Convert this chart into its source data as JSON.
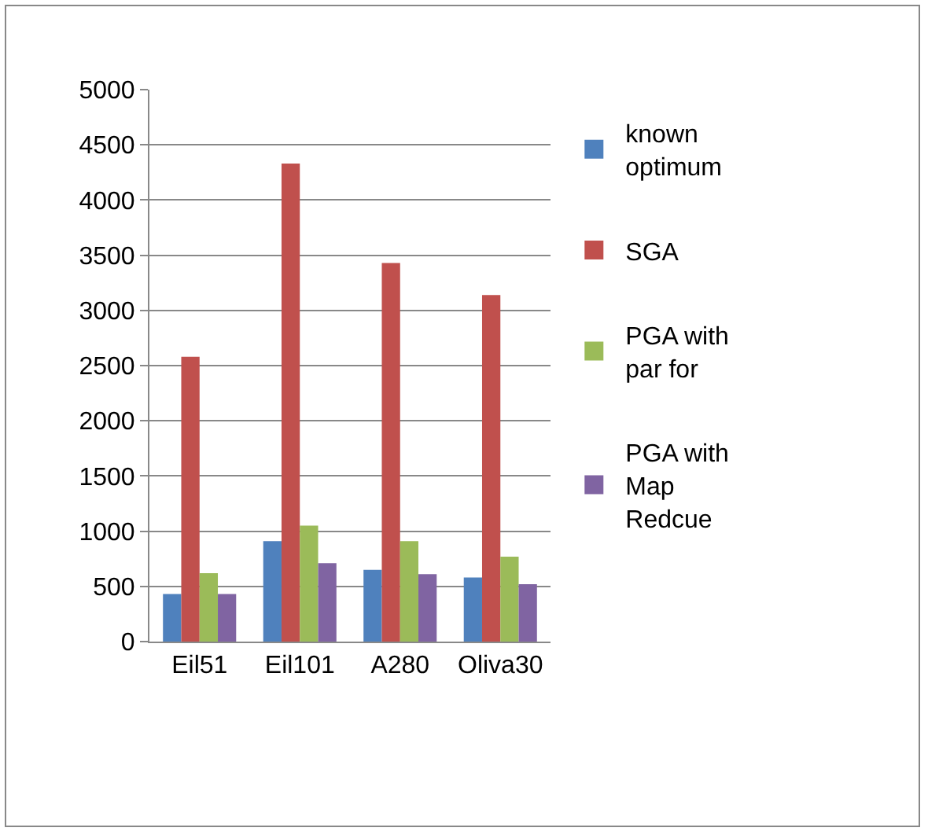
{
  "chart_data": {
    "type": "bar",
    "categories": [
      "Eil51",
      "Eil101",
      "A280",
      "Oliva30"
    ],
    "series": [
      {
        "name": "known optimum",
        "color": "#4f81bd",
        "values": [
          430,
          910,
          650,
          580
        ]
      },
      {
        "name": "SGA",
        "color": "#c0504d",
        "values": [
          2580,
          4330,
          3430,
          3140
        ]
      },
      {
        "name": "PGA with par for",
        "color": "#9bbb59",
        "values": [
          620,
          1050,
          910,
          770
        ]
      },
      {
        "name": "PGA with Map Redcue",
        "color": "#8064a2",
        "values": [
          430,
          710,
          610,
          520
        ]
      }
    ],
    "ylim": [
      0,
      5000
    ],
    "yticks": [
      0,
      500,
      1000,
      1500,
      2000,
      2500,
      3000,
      3500,
      4000,
      4500,
      5000
    ],
    "grid": "y",
    "legend": "right"
  }
}
